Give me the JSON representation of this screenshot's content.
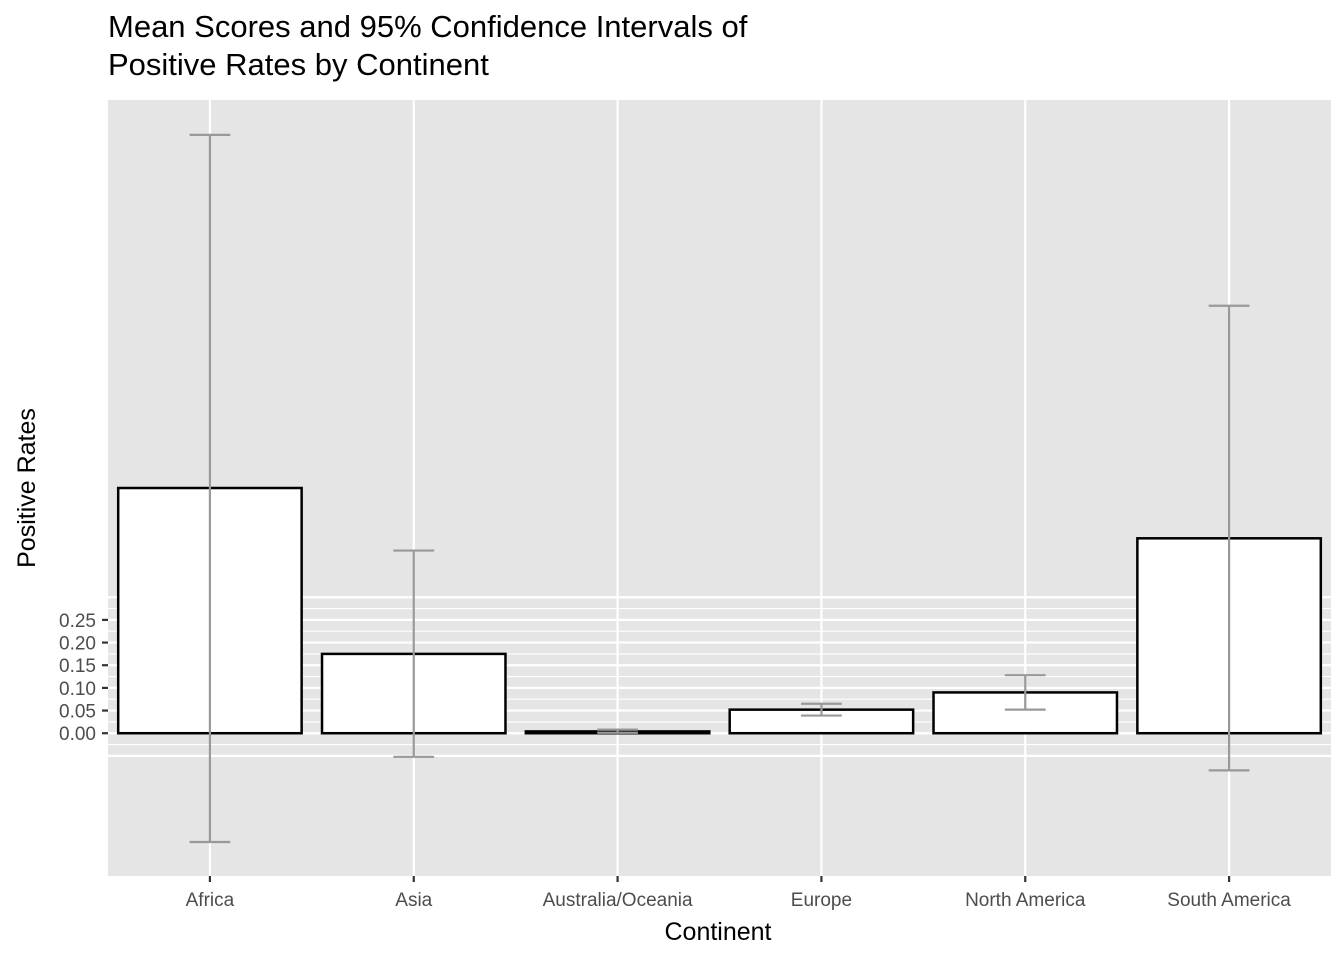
{
  "title_lines": [
    "Mean Scores and 95% Confidence Intervals of",
    "Positive Rates by Continent"
  ],
  "chart_data": {
    "type": "bar",
    "title": "Mean Scores and 95% Confidence Intervals of Positive Rates by Continent",
    "xlabel": "Continent",
    "ylabel": "Positive Rates",
    "categories": [
      "Africa",
      "Asia",
      "Australia/Oceania",
      "Europe",
      "North America",
      "South America"
    ],
    "values": [
      0.541,
      0.175,
      0.004,
      0.052,
      0.09,
      0.43
    ],
    "error_low": [
      -0.24,
      -0.052,
      0.001,
      0.039,
      0.052,
      -0.082
    ],
    "error_high": [
      1.32,
      0.403,
      0.008,
      0.065,
      0.128,
      0.943
    ],
    "y_ticks": [
      "0.00",
      "0.05",
      "0.10",
      "0.15",
      "0.20",
      "0.25"
    ],
    "ylim": [
      -0.315,
      1.397
    ],
    "grid": true,
    "colors": {
      "panel": "#e5e5e5",
      "grid": "#ffffff",
      "bar_fill": "#ffffff",
      "bar_stroke": "#000000",
      "errorbar": "#999999",
      "tick_text": "#4d4d4d"
    }
  }
}
